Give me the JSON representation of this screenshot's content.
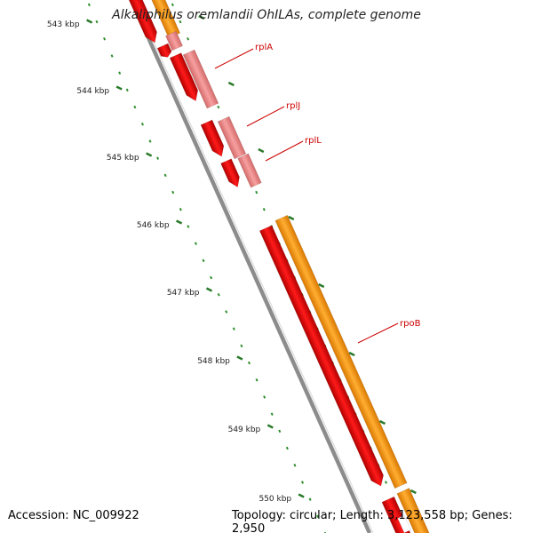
{
  "title": "Alkaliphilus oremlandii OhILAs, complete genome",
  "footer": {
    "accession": "Accession: NC_009922",
    "summary": "Topology: circular; Length: 3,123,558 bp; Genes: 2,950"
  },
  "colors": {
    "background": "#ffffff",
    "backbone": "#8c8c8c",
    "tick_major": "#2a7a2a",
    "tick_minor": "#2f8f2f",
    "gene_red": "#ff0000",
    "gene_pink": "#f08080",
    "gene_orange": "#ff9900",
    "label_text": "#cc0000",
    "label_line": "#cc0000"
  },
  "ticks": [
    {
      "label": "543 kbp"
    },
    {
      "label": "544 kbp"
    },
    {
      "label": "545 kbp"
    },
    {
      "label": "546 kbp"
    },
    {
      "label": "547 kbp"
    },
    {
      "label": "548 kbp"
    },
    {
      "label": "549 kbp"
    },
    {
      "label": "550 kbp"
    }
  ],
  "gene_labels": [
    {
      "name": "rplA"
    },
    {
      "name": "rplJ"
    },
    {
      "name": "rplL"
    },
    {
      "name": "rpoB"
    }
  ]
}
